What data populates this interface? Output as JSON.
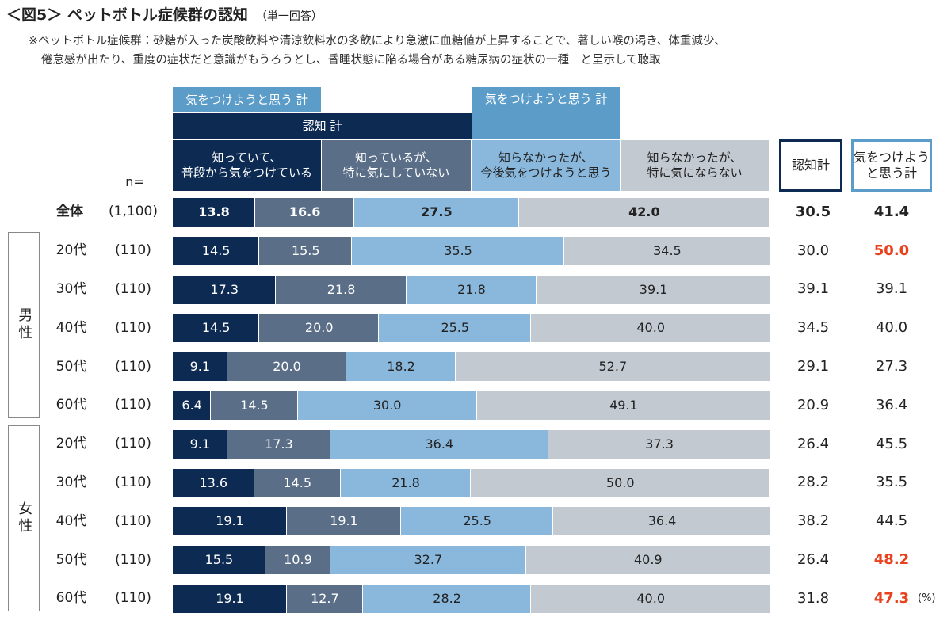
{
  "chart_data": {
    "type": "stacked-barh",
    "title": "＜図5＞ ペットボトル症候群の認知",
    "title_note": "（単一回答）",
    "subtitle": [
      "※ペットボトル症候群：砂糖が入った炭酸飲料や清涼飲料水の多飲により急激に血糖値が上昇することで、著しい喉の渇き、体重減少、",
      "倦怠感が出たり、重度の症状だと意識がもうろうとし、昏睡状態に陥る場合がある糖尿病の症状の一種　と呈示して聴取"
    ],
    "brackets": {
      "care_total": "気をつけようと思う 計",
      "aware_total": "認知 計"
    },
    "n_label": "n=",
    "unit": "(%)",
    "xlim": [
      0,
      100
    ],
    "categories": [
      "全体",
      "20代",
      "30代",
      "40代",
      "50代",
      "60代",
      "20代",
      "30代",
      "40代",
      "50代",
      "60代"
    ],
    "category_groups": [
      null,
      "男性",
      "男性",
      "男性",
      "男性",
      "男性",
      "女性",
      "女性",
      "女性",
      "女性",
      "女性"
    ],
    "n": [
      "(1,100)",
      "(110)",
      "(110)",
      "(110)",
      "(110)",
      "(110)",
      "(110)",
      "(110)",
      "(110)",
      "(110)",
      "(110)"
    ],
    "series": [
      {
        "name": "知っていて、\n普段から気をつけている",
        "color": "#0d2b52",
        "text_color": "#ffffff",
        "values": [
          13.8,
          14.5,
          17.3,
          14.5,
          9.1,
          6.4,
          9.1,
          13.6,
          19.1,
          15.5,
          19.1
        ],
        "value_labels": [
          "13.8",
          "14.5",
          "17.3",
          "14.5",
          "9.1",
          "6.4",
          "9.1",
          "13.6",
          "19.1",
          "15.5",
          "19.1"
        ]
      },
      {
        "name": "知っているが、\n特に気にしていない",
        "color": "#5a6e88",
        "text_color": "#ffffff",
        "values": [
          16.6,
          15.5,
          21.8,
          20.0,
          20.0,
          14.5,
          17.3,
          14.5,
          19.1,
          10.9,
          12.7
        ],
        "value_labels": [
          "16.6",
          "15.5",
          "21.8",
          "20.0",
          "20.0",
          "14.5",
          "17.3",
          "14.5",
          "19.1",
          "10.9",
          "12.7"
        ]
      },
      {
        "name": "知らなかったが、\n今後気をつけようと思う",
        "color": "#8ab8dc",
        "text_color": "#222222",
        "values": [
          27.5,
          35.5,
          21.8,
          25.5,
          18.2,
          30.0,
          36.4,
          21.8,
          25.5,
          32.7,
          28.2
        ],
        "value_labels": [
          "27.5",
          "35.5",
          "21.8",
          "25.5",
          "18.2",
          "30.0",
          "36.4",
          "21.8",
          "25.5",
          "32.7",
          "28.2"
        ]
      },
      {
        "name": "知らなかったが、\n特に気にならない",
        "color": "#c2c9d1",
        "text_color": "#222222",
        "values": [
          42.0,
          34.5,
          39.1,
          40.0,
          52.7,
          49.1,
          37.3,
          50.0,
          36.4,
          40.9,
          40.0
        ],
        "value_labels": [
          "42.0",
          "34.5",
          "39.1",
          "40.0",
          "52.7",
          "49.1",
          "37.3",
          "50.0",
          "36.4",
          "40.9",
          "40.0"
        ]
      }
    ],
    "totals": [
      {
        "name": "認知計",
        "values": [
          30.5,
          30.0,
          39.1,
          34.5,
          29.1,
          20.9,
          26.4,
          28.2,
          38.2,
          26.4,
          31.8
        ],
        "value_labels": [
          "30.5",
          "30.0",
          "39.1",
          "34.5",
          "29.1",
          "20.9",
          "26.4",
          "28.2",
          "38.2",
          "26.4",
          "31.8"
        ],
        "highlighted": [
          false,
          false,
          false,
          false,
          false,
          false,
          false,
          false,
          false,
          false,
          false
        ]
      },
      {
        "name": "気をつけよう\nと思う計",
        "values": [
          41.4,
          50.0,
          39.1,
          40.0,
          27.3,
          36.4,
          45.5,
          35.5,
          44.5,
          48.2,
          47.3
        ],
        "value_labels": [
          "41.4",
          "50.0",
          "39.1",
          "40.0",
          "27.3",
          "36.4",
          "45.5",
          "35.5",
          "44.5",
          "48.2",
          "47.3"
        ],
        "highlighted": [
          false,
          true,
          false,
          false,
          false,
          false,
          false,
          false,
          false,
          true,
          true
        ]
      }
    ],
    "highlight_color": "#e8411e"
  }
}
